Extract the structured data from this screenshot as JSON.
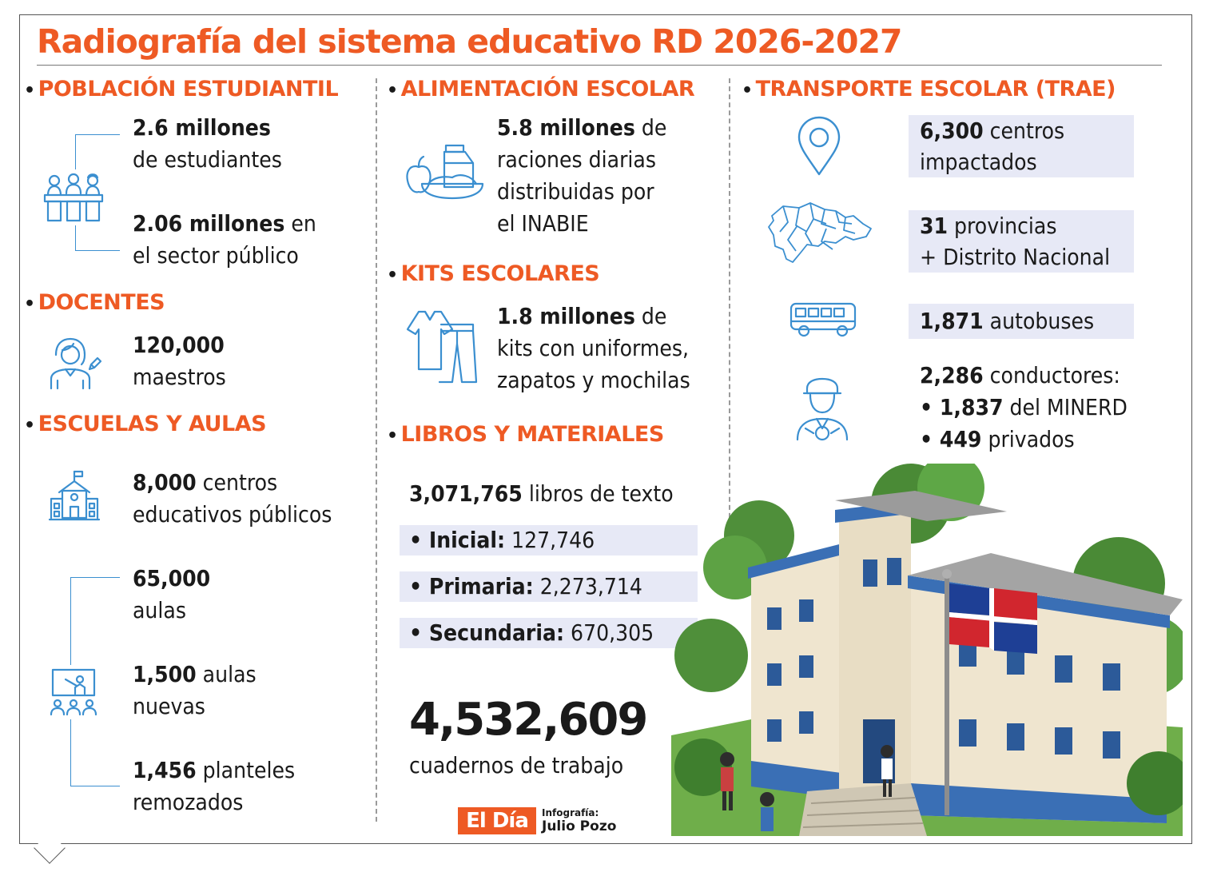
{
  "title": "Radiografía del sistema educativo RD 2026-2027",
  "colors": {
    "accent": "#ee5a24",
    "icon_blue": "#3b8fd0",
    "highlight": "#e7e9f6"
  },
  "poblacion": {
    "heading": "POBLACIÓN ESTUDIANTIL",
    "icon": "students-icon",
    "stat1_num": "2.6 millones",
    "stat1_text": "de estudiantes",
    "stat2_num": "2.06 millones",
    "stat2_rest": " en",
    "stat2_text": "el sector público"
  },
  "docentes": {
    "heading": "DOCENTES",
    "icon": "teacher-icon",
    "num": "120,000",
    "text": "maestros"
  },
  "escuelas": {
    "heading": "ESCUELAS Y AULAS",
    "icon": "school-icon",
    "centros_num": "8,000",
    "centros_rest": " centros",
    "centros_text": "educativos públicos",
    "aulas_num": "65,000",
    "aulas_text": "aulas",
    "nuevas_num": "1,500",
    "nuevas_rest": " aulas",
    "nuevas_text": "nuevas",
    "planteles_num": "1,456",
    "planteles_rest": " planteles",
    "planteles_text": "remozados"
  },
  "alimentacion": {
    "heading": "ALIMENTACIÓN ESCOLAR",
    "icon": "food-icon",
    "num": "5.8 millones",
    "rest": " de",
    "line2": "raciones diarias",
    "line3": "distribuidas por",
    "line4": "el INABIE"
  },
  "kits": {
    "heading": "KITS ESCOLARES",
    "icon": "uniform-icon",
    "num": "1.8 millones",
    "rest": " de",
    "line2": "kits con uniformes,",
    "line3": "zapatos y mochilas"
  },
  "libros": {
    "heading": "LIBROS Y MATERIALES",
    "total_num": "3,071,765",
    "total_rest": " libros de texto",
    "items": [
      {
        "label": "• Inicial:",
        "value": " 127,746"
      },
      {
        "label": "• Primaria:",
        "value": " 2,273,714"
      },
      {
        "label": "• Secundaria:",
        "value": " 670,305"
      }
    ],
    "cuadernos_num": "4,532,609",
    "cuadernos_text": "cuadernos de trabajo"
  },
  "transporte": {
    "heading": "TRANSPORTE ESCOLAR (TRAE)",
    "centros_num": "6,300",
    "centros_rest": " centros",
    "centros_text": "impactados",
    "prov_num": "31",
    "prov_rest": " provincias",
    "prov_text": "+ Distrito Nacional",
    "bus_num": "1,871",
    "bus_rest": " autobuses",
    "cond_num": "2,286",
    "cond_rest": " conductores:",
    "cond_b1_num": "• 1,837",
    "cond_b1_rest": " del MINERD",
    "cond_b2_num": "• 449",
    "cond_b2_rest": " privados",
    "icons": [
      "location-pin-icon",
      "map-icon",
      "bus-icon",
      "driver-icon"
    ]
  },
  "footer": {
    "logo": "El Día",
    "credit_label": "Infografía:",
    "credit_name": "Julio Pozo"
  }
}
